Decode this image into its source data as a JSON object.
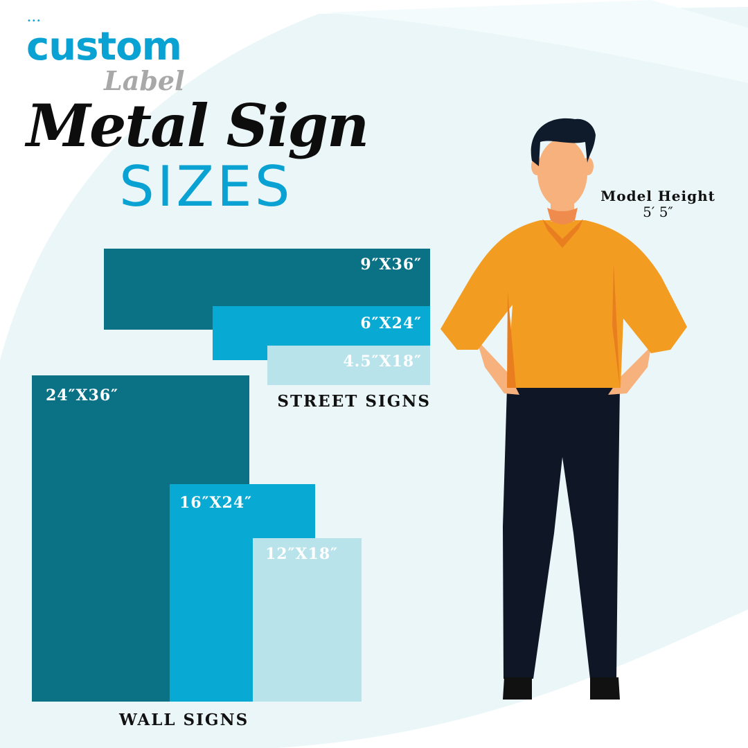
{
  "logo": {
    "dots": "•••",
    "word1": "custom",
    "word2": "Label"
  },
  "title": "Metal Sign",
  "subtitle": "SIZES",
  "colors": {
    "dark_teal": "#0b7286",
    "bright_blue": "#08a9d2",
    "light_blue": "#b9e3ea",
    "background": "#eaf6f8",
    "brand_blue": "#0aa2d2"
  },
  "street_signs": {
    "label": "STREET SIGNS",
    "sizes": [
      {
        "label": "9″X36″",
        "height_in": 9,
        "width_in": 36
      },
      {
        "label": "6″X24″",
        "height_in": 6,
        "width_in": 24
      },
      {
        "label": "4.5″X18″",
        "height_in": 4.5,
        "width_in": 18
      }
    ]
  },
  "wall_signs": {
    "label": "WALL SIGNS",
    "sizes": [
      {
        "label": "24″X36″",
        "width_in": 24,
        "height_in": 36
      },
      {
        "label": "16″X24″",
        "width_in": 16,
        "height_in": 24
      },
      {
        "label": "12″X18″",
        "width_in": 12,
        "height_in": 18
      }
    ]
  },
  "model": {
    "heading": "Model Height",
    "value": "5′ 5″"
  }
}
